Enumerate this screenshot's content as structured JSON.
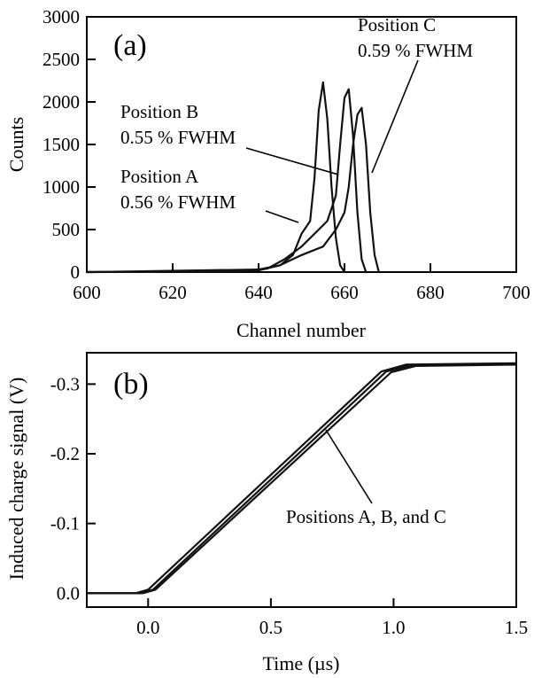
{
  "chart_data": [
    {
      "type": "line",
      "panel_label": "(a)",
      "xlabel": "Channel number",
      "ylabel": "Counts",
      "xlim": [
        600,
        700
      ],
      "ylim": [
        0,
        3000
      ],
      "x_ticks": [
        600,
        620,
        640,
        660,
        680,
        700
      ],
      "y_ticks": [
        0,
        500,
        1000,
        1500,
        2000,
        2500,
        3000
      ],
      "series": [
        {
          "x": [
            600,
            630,
            640,
            645,
            648,
            650,
            652,
            653,
            654,
            655,
            656,
            657,
            658,
            659,
            660
          ],
          "y": [
            0,
            5,
            20,
            80,
            200,
            450,
            600,
            1100,
            1900,
            2230,
            1800,
            1000,
            400,
            80,
            0
          ]
        },
        {
          "x": [
            600,
            635,
            642,
            646,
            650,
            653,
            656,
            658,
            659,
            660,
            661,
            662,
            663,
            664,
            665
          ],
          "y": [
            0,
            10,
            40,
            150,
            300,
            450,
            600,
            900,
            1500,
            2050,
            2150,
            1600,
            700,
            150,
            0
          ]
        },
        {
          "x": [
            600,
            640,
            645,
            650,
            655,
            658,
            660,
            661,
            662,
            663,
            664,
            665,
            666,
            667,
            668
          ],
          "y": [
            0,
            30,
            80,
            200,
            300,
            500,
            700,
            1000,
            1500,
            1850,
            1930,
            1500,
            700,
            200,
            0
          ]
        }
      ],
      "annotations": [
        {
          "line1": "Position C",
          "line2": "0.59 % FWHM"
        },
        {
          "line1": "Position B",
          "line2": "0.55 % FWHM"
        },
        {
          "line1": "Position A",
          "line2": "0.56 % FWHM"
        }
      ]
    },
    {
      "type": "line",
      "panel_label": "(b)",
      "xlabel": "Time (µs)",
      "ylabel": "Induced charge signal (V)",
      "xlim": [
        -0.25,
        1.5
      ],
      "ylim": [
        0.02,
        -0.345
      ],
      "x_ticks": [
        "0.0",
        "0.5",
        "1.0",
        "1.5"
      ],
      "x_tick_values": [
        0.0,
        0.5,
        1.0,
        1.5
      ],
      "y_ticks": [
        "0.0",
        "-0.1",
        "-0.2",
        "-0.3"
      ],
      "y_tick_values": [
        0.0,
        -0.1,
        -0.2,
        -0.3
      ],
      "series": [
        {
          "x": [
            -0.25,
            -0.05,
            0.0,
            0.95,
            1.05,
            1.5
          ],
          "y": [
            0.0,
            0.0,
            -0.005,
            -0.318,
            -0.328,
            -0.33
          ]
        },
        {
          "x": [
            -0.25,
            -0.03,
            0.02,
            0.97,
            1.07,
            1.5
          ],
          "y": [
            0.0,
            0.0,
            -0.005,
            -0.318,
            -0.327,
            -0.329
          ]
        },
        {
          "x": [
            -0.25,
            -0.02,
            0.03,
            0.99,
            1.09,
            1.5
          ],
          "y": [
            0.0,
            0.0,
            -0.005,
            -0.317,
            -0.326,
            -0.328
          ]
        }
      ],
      "annotations": [
        {
          "text": "Positions A, B, and C"
        }
      ]
    }
  ]
}
